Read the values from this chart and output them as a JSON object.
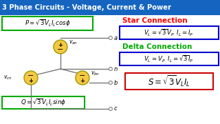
{
  "title": "3 Phase Circuits - Voltage, Current & Power",
  "title_bg": "#1565C0",
  "title_color": "#FFFFFF",
  "star_label": "Star Connection",
  "star_color": "#FF0000",
  "delta_label": "Delta Connection",
  "delta_color": "#00AA00",
  "star_formula": "$V_L = \\sqrt{3}V_P \\;\\; I_L = I_P$",
  "delta_formula": "$V_L = V_P \\;\\; I_L = \\sqrt{3}I_P$",
  "p_formula": "$P = \\sqrt{3}V_L I_L cos\\phi$",
  "q_formula": "$Q = \\sqrt{3}V_L I_L sin\\phi$",
  "s_formula": "$S = \\sqrt{3}V_L I_L$",
  "box_green": "#00AA00",
  "box_blue": "#0000CC",
  "box_red": "#CC0000",
  "node_color": "#F5C842",
  "node_edge": "#999900",
  "line_color": "#777777",
  "bg_color": "#FFFFFF"
}
